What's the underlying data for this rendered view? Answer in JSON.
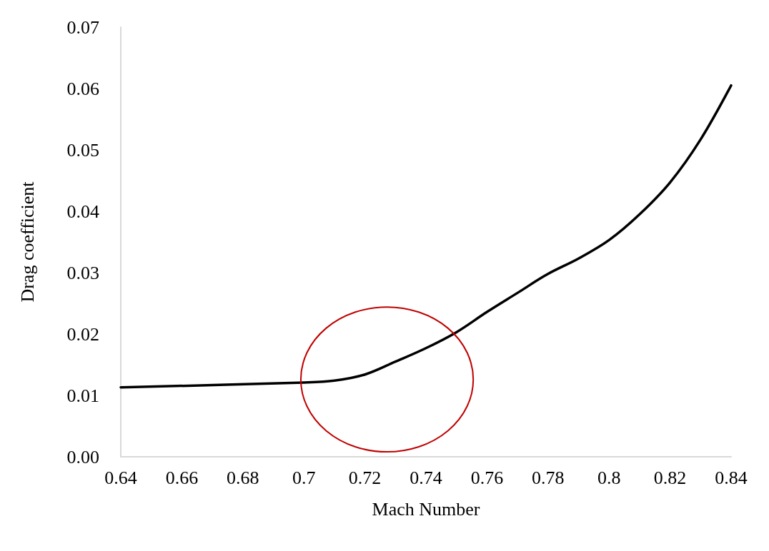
{
  "chart_data": {
    "type": "line",
    "xlabel": "Mach Number",
    "ylabel": "Drag coefficient",
    "x": [
      0.64,
      0.7,
      0.71,
      0.72,
      0.73,
      0.74,
      0.75,
      0.76,
      0.77,
      0.78,
      0.79,
      0.8,
      0.81,
      0.82,
      0.83,
      0.84
    ],
    "series": [
      {
        "color": "#000000",
        "values": [
          0.0113,
          0.0121,
          0.0124,
          0.0134,
          0.0155,
          0.0177,
          0.0203,
          0.0236,
          0.0267,
          0.0298,
          0.0323,
          0.0353,
          0.0395,
          0.0447,
          0.0517,
          0.0605
        ]
      }
    ],
    "xlim": [
      0.64,
      0.84
    ],
    "xticks": [
      0.64,
      0.66,
      0.68,
      0.7,
      0.72,
      0.74,
      0.76,
      0.78,
      0.8,
      0.82,
      0.84
    ],
    "ylim": [
      0,
      0.07
    ],
    "yticks": [
      {
        "value": 0,
        "label": "0.00"
      },
      {
        "value": 0.01,
        "label": "0.01"
      },
      {
        "value": 0.02,
        "label": "0.02"
      },
      {
        "value": 0.03,
        "label": "0.03"
      },
      {
        "value": 0.04,
        "label": "0.04"
      },
      {
        "value": 0.05,
        "label": "0.05"
      },
      {
        "value": 0.06,
        "label": "0.06"
      },
      {
        "value": 0.07,
        "label": "0.07"
      }
    ],
    "grid": false,
    "marker": "none",
    "line_style": "solid"
  }
}
